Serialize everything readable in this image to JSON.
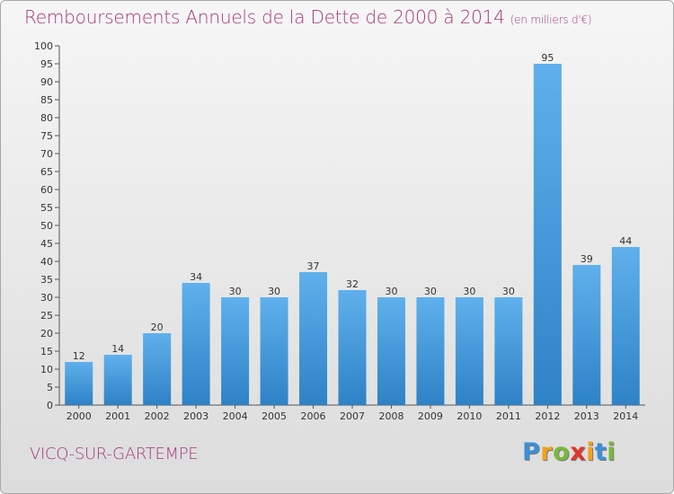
{
  "chart_data": {
    "type": "bar",
    "title": "Remboursements Annuels de la Dette de 2000 à 2014",
    "unit_label": "(en milliers d'€)",
    "categories": [
      "2000",
      "2001",
      "2002",
      "2003",
      "2004",
      "2005",
      "2006",
      "2007",
      "2008",
      "2009",
      "2010",
      "2011",
      "2012",
      "2013",
      "2014"
    ],
    "values": [
      12,
      14,
      20,
      34,
      30,
      30,
      37,
      32,
      30,
      30,
      30,
      30,
      95,
      39,
      44
    ],
    "ylim": [
      0,
      100
    ],
    "ytick_step": 5,
    "xlabel": "",
    "ylabel": "",
    "grid": false,
    "bar_color": "#4a9ee0"
  },
  "commune": "VICQ-SUR-GARTEMPE",
  "logo": {
    "letters": [
      "P",
      "r",
      "o",
      "x",
      "i",
      "t",
      "i"
    ],
    "colors": [
      "#3b8fd8",
      "#f2a21b",
      "#7ab83d",
      "#e2352b",
      "#f2a21b",
      "#3b8fd8",
      "#7ab83d"
    ]
  }
}
